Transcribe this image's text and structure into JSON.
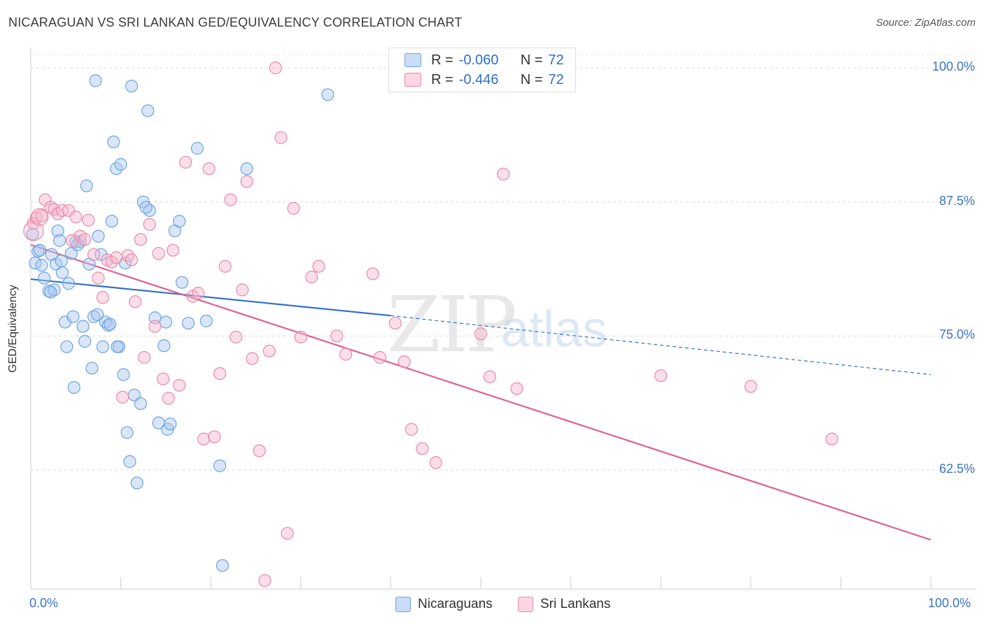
{
  "title": "NICARAGUAN VS SRI LANKAN GED/EQUIVALENCY CORRELATION CHART",
  "source": "Source: ZipAtlas.com",
  "watermark": {
    "zip": "ZIP",
    "atlas": "atlas"
  },
  "legend_top": {
    "rows": [
      {
        "r_label": "R =",
        "r_value": "-0.060",
        "n_label": "N =",
        "n_value": "72",
        "color": "#a8c8f0"
      },
      {
        "r_label": "R =",
        "r_value": "-0.446",
        "n_label": "N =",
        "n_value": "72",
        "color": "#f6b8cb"
      }
    ]
  },
  "legend_bottom": [
    {
      "label": "Nicaraguans",
      "color": "#a8c8f0"
    },
    {
      "label": "Sri Lankans",
      "color": "#f6b8cb"
    }
  ],
  "chart_data": {
    "type": "scatter",
    "title": "NICARAGUAN VS SRI LANKAN GED/EQUIVALENCY CORRELATION CHART",
    "xlabel": "",
    "ylabel": "GED/Equivalency",
    "xlim": [
      0,
      100
    ],
    "ylim": [
      52,
      101.5
    ],
    "x_tick_labels": {
      "min": "0.0%",
      "max": "100.0%"
    },
    "y_ticks": [
      {
        "value": 100,
        "label": "100.0%"
      },
      {
        "value": 87.5,
        "label": "87.5%"
      },
      {
        "value": 75,
        "label": "75.0%"
      },
      {
        "value": 62.5,
        "label": "62.5%"
      }
    ],
    "series": [
      {
        "name": "Nicaraguans",
        "color": "#6fa3e0",
        "fill": "#a8c8f0",
        "trend": {
          "x0": 0,
          "y0": 80.3,
          "x1": 40,
          "y1": 76.9,
          "dash_to_x": 100,
          "dash_to_y": 71.4,
          "color": "#2f6fd0"
        },
        "points": [
          [
            0.2,
            84.5
          ],
          [
            0.5,
            81.8
          ],
          [
            0.8,
            82.9
          ],
          [
            1.2,
            81.6
          ],
          [
            1.5,
            80.4
          ],
          [
            2.0,
            79.2
          ],
          [
            2.3,
            82.6
          ],
          [
            2.6,
            79.3
          ],
          [
            2.8,
            81.7
          ],
          [
            3.0,
            84.8
          ],
          [
            3.2,
            83.9
          ],
          [
            3.5,
            80.9
          ],
          [
            3.8,
            76.3
          ],
          [
            4.0,
            74.0
          ],
          [
            4.2,
            79.9
          ],
          [
            4.5,
            82.7
          ],
          [
            4.8,
            70.2
          ],
          [
            5.0,
            83.8
          ],
          [
            5.5,
            83.8
          ],
          [
            5.8,
            75.9
          ],
          [
            6.2,
            89.0
          ],
          [
            6.5,
            81.7
          ],
          [
            6.8,
            72.0
          ],
          [
            7.0,
            76.8
          ],
          [
            7.2,
            98.8
          ],
          [
            7.5,
            84.3
          ],
          [
            7.8,
            82.6
          ],
          [
            8.0,
            74.0
          ],
          [
            8.3,
            76.3
          ],
          [
            8.6,
            76.0
          ],
          [
            9.0,
            85.7
          ],
          [
            9.2,
            93.1
          ],
          [
            9.5,
            90.6
          ],
          [
            9.8,
            74.0
          ],
          [
            10.0,
            91.0
          ],
          [
            10.3,
            71.4
          ],
          [
            10.5,
            81.8
          ],
          [
            10.7,
            66.0
          ],
          [
            11.0,
            63.3
          ],
          [
            11.2,
            98.3
          ],
          [
            11.5,
            69.5
          ],
          [
            11.8,
            61.3
          ],
          [
            12.2,
            68.7
          ],
          [
            12.5,
            87.5
          ],
          [
            13.0,
            96.0
          ],
          [
            13.2,
            86.7
          ],
          [
            13.8,
            76.7
          ],
          [
            14.2,
            66.9
          ],
          [
            14.8,
            74.1
          ],
          [
            15.2,
            66.3
          ],
          [
            15.5,
            66.8
          ],
          [
            16.0,
            84.8
          ],
          [
            16.5,
            85.7
          ],
          [
            17.5,
            76.2
          ],
          [
            18.5,
            92.5
          ],
          [
            19.5,
            76.4
          ],
          [
            21.0,
            62.9
          ],
          [
            21.3,
            53.6
          ],
          [
            24.0,
            90.6
          ],
          [
            33.0,
            97.5
          ],
          [
            1.0,
            83.0
          ],
          [
            2.2,
            79.1
          ],
          [
            3.4,
            82.0
          ],
          [
            4.7,
            76.8
          ],
          [
            5.2,
            83.5
          ],
          [
            6.0,
            74.5
          ],
          [
            7.4,
            77.0
          ],
          [
            8.8,
            76.1
          ],
          [
            9.6,
            74.0
          ],
          [
            12.8,
            87.0
          ],
          [
            15.0,
            76.3
          ],
          [
            16.8,
            80.0
          ]
        ]
      },
      {
        "name": "Sri Lankans",
        "color": "#e88aa8",
        "fill": "#f6b8cb",
        "trend": {
          "x0": 0,
          "y0": 83.5,
          "x1": 100,
          "y1": 56.0,
          "color": "#e0608f"
        },
        "points": [
          [
            0.3,
            85.5
          ],
          [
            0.6,
            86.0
          ],
          [
            1.2,
            86.2
          ],
          [
            1.6,
            87.7
          ],
          [
            2.2,
            87.0
          ],
          [
            2.6,
            86.8
          ],
          [
            3.0,
            86.4
          ],
          [
            3.5,
            86.7
          ],
          [
            4.2,
            86.7
          ],
          [
            4.6,
            83.9
          ],
          [
            5.0,
            86.1
          ],
          [
            5.5,
            84.3
          ],
          [
            6.0,
            84.0
          ],
          [
            6.4,
            85.8
          ],
          [
            7.0,
            82.6
          ],
          [
            7.5,
            80.4
          ],
          [
            8.0,
            78.6
          ],
          [
            8.5,
            82.1
          ],
          [
            9.0,
            81.9
          ],
          [
            9.5,
            82.3
          ],
          [
            10.2,
            69.3
          ],
          [
            10.8,
            82.5
          ],
          [
            11.2,
            82.1
          ],
          [
            11.6,
            78.2
          ],
          [
            12.2,
            84.0
          ],
          [
            12.6,
            73.0
          ],
          [
            13.2,
            85.4
          ],
          [
            13.8,
            75.9
          ],
          [
            14.2,
            82.7
          ],
          [
            14.7,
            71.0
          ],
          [
            15.3,
            69.2
          ],
          [
            15.8,
            83.0
          ],
          [
            16.5,
            70.4
          ],
          [
            17.2,
            91.2
          ],
          [
            18.0,
            78.7
          ],
          [
            18.6,
            79.0
          ],
          [
            19.2,
            65.4
          ],
          [
            19.8,
            90.6
          ],
          [
            20.4,
            65.6
          ],
          [
            21.0,
            71.5
          ],
          [
            21.6,
            81.5
          ],
          [
            22.2,
            87.7
          ],
          [
            22.8,
            74.9
          ],
          [
            23.5,
            79.3
          ],
          [
            24.0,
            89.4
          ],
          [
            24.6,
            72.9
          ],
          [
            25.4,
            64.3
          ],
          [
            26.0,
            52.2
          ],
          [
            26.5,
            73.6
          ],
          [
            27.2,
            100.0
          ],
          [
            27.8,
            93.5
          ],
          [
            28.5,
            56.6
          ],
          [
            29.2,
            86.9
          ],
          [
            30.0,
            74.9
          ],
          [
            31.2,
            80.5
          ],
          [
            32.0,
            81.5
          ],
          [
            34.0,
            75.0
          ],
          [
            35.0,
            73.3
          ],
          [
            38.0,
            80.8
          ],
          [
            38.8,
            73.0
          ],
          [
            40.5,
            76.2
          ],
          [
            41.5,
            72.6
          ],
          [
            42.3,
            66.3
          ],
          [
            43.5,
            64.5
          ],
          [
            45.0,
            63.2
          ],
          [
            50.0,
            75.2
          ],
          [
            51.0,
            71.2
          ],
          [
            52.5,
            90.1
          ],
          [
            54.0,
            70.1
          ],
          [
            70.0,
            71.3
          ],
          [
            80.0,
            70.3
          ],
          [
            89.0,
            65.4
          ]
        ]
      }
    ]
  }
}
